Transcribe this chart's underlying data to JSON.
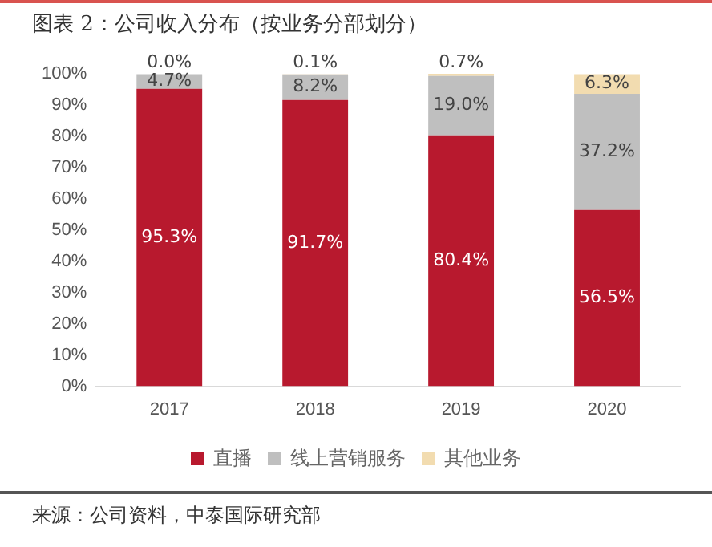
{
  "chart_data": {
    "type": "bar",
    "title": "图表 2：公司收入分布（按业务分部划分）",
    "categories": [
      "2017",
      "2018",
      "2019",
      "2020"
    ],
    "stacked": true,
    "series": [
      {
        "name": "直播",
        "color": "#b8192e",
        "values": [
          95.3,
          91.7,
          80.4,
          56.5
        ],
        "value_labels": [
          "95.3%",
          "91.7%",
          "80.4%",
          "56.5%"
        ]
      },
      {
        "name": "线上营销服务",
        "color": "#bfbfbf",
        "values": [
          4.7,
          8.2,
          19.0,
          37.2
        ],
        "value_labels": [
          "4.7%",
          "8.2%",
          "19.0%",
          "37.2%"
        ]
      },
      {
        "name": "其他业务",
        "color": "#f2dcb0",
        "values": [
          0.0,
          0.1,
          0.7,
          6.3
        ],
        "value_labels": [
          "0.0%",
          "0.1%",
          "0.7%",
          "6.3%"
        ]
      }
    ],
    "ylim": [
      0,
      100.1
    ],
    "yticks": [
      {
        "value": 0,
        "label": "0%"
      },
      {
        "value": 10,
        "label": "10%"
      },
      {
        "value": 20,
        "label": "20%"
      },
      {
        "value": 30,
        "label": "30%"
      },
      {
        "value": 40,
        "label": "40%"
      },
      {
        "value": 50,
        "label": "50%"
      },
      {
        "value": 60,
        "label": "60%"
      },
      {
        "value": 70,
        "label": "70%"
      },
      {
        "value": 80,
        "label": "80%"
      },
      {
        "value": 90,
        "label": "90%"
      },
      {
        "value": 100,
        "label": "100%"
      }
    ],
    "grid": false,
    "legend": "bottom",
    "annotations": [
      "来源：公司资料，中泰国际研究部"
    ]
  }
}
